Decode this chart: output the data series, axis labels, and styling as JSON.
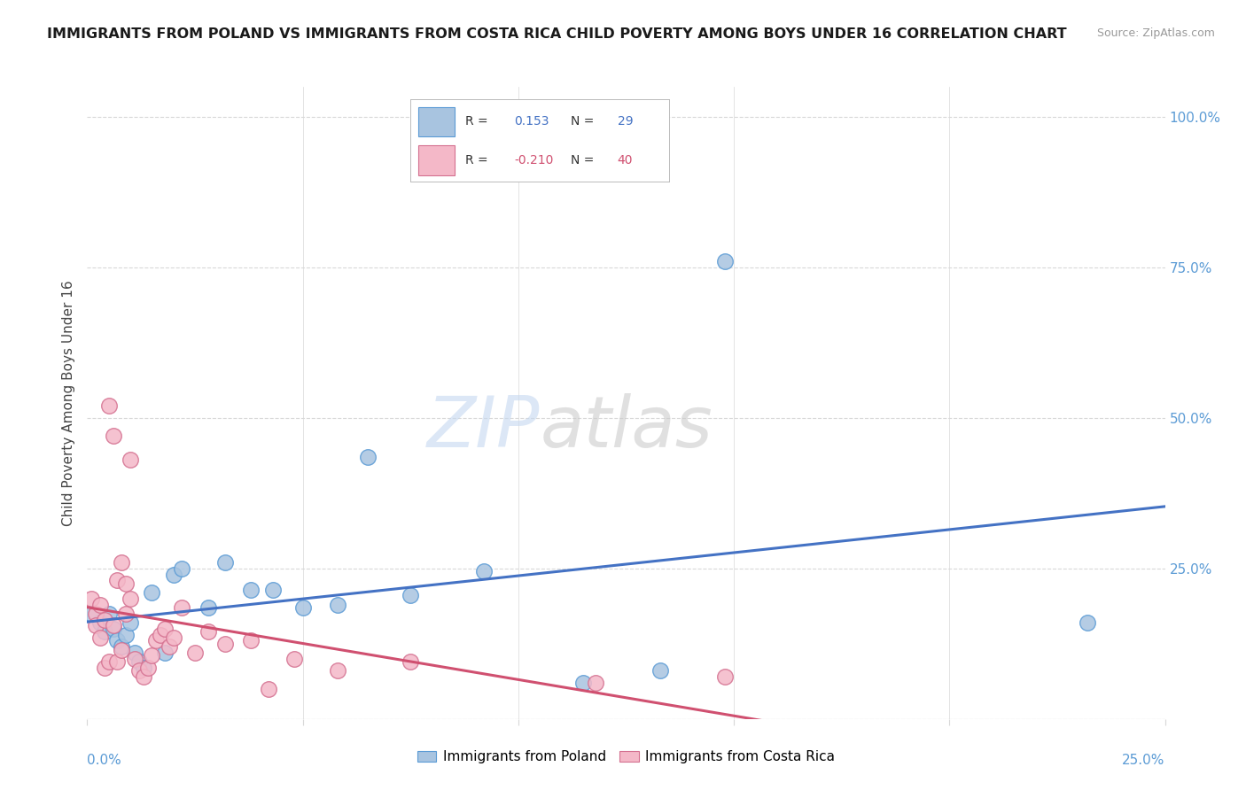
{
  "title": "IMMIGRANTS FROM POLAND VS IMMIGRANTS FROM COSTA RICA CHILD POVERTY AMONG BOYS UNDER 16 CORRELATION CHART",
  "source": "Source: ZipAtlas.com",
  "ylabel": "Child Poverty Among Boys Under 16",
  "xlim": [
    0.0,
    0.25
  ],
  "ylim": [
    0.0,
    1.05
  ],
  "poland_color": "#a8c4e0",
  "poland_edge_color": "#5b9bd5",
  "costa_rica_color": "#f4b8c8",
  "costa_rica_edge_color": "#d47090",
  "trend_poland_color": "#4472c4",
  "trend_costa_rica_color": "#d05070",
  "legend_R_poland": "0.153",
  "legend_N_poland": "29",
  "legend_R_costa_rica": "-0.210",
  "legend_N_costa_rica": "40",
  "poland_x": [
    0.001,
    0.003,
    0.004,
    0.005,
    0.006,
    0.007,
    0.008,
    0.009,
    0.01,
    0.011,
    0.012,
    0.013,
    0.015,
    0.018,
    0.02,
    0.022,
    0.028,
    0.032,
    0.038,
    0.043,
    0.05,
    0.058,
    0.065,
    0.075,
    0.092,
    0.115,
    0.133,
    0.148,
    0.232
  ],
  "poland_y": [
    0.175,
    0.16,
    0.145,
    0.175,
    0.15,
    0.13,
    0.12,
    0.14,
    0.16,
    0.11,
    0.095,
    0.085,
    0.21,
    0.11,
    0.24,
    0.25,
    0.185,
    0.26,
    0.215,
    0.215,
    0.185,
    0.19,
    0.435,
    0.205,
    0.245,
    0.06,
    0.08,
    0.76,
    0.16
  ],
  "costa_rica_x": [
    0.001,
    0.002,
    0.002,
    0.003,
    0.003,
    0.004,
    0.004,
    0.005,
    0.005,
    0.006,
    0.006,
    0.007,
    0.007,
    0.008,
    0.008,
    0.009,
    0.009,
    0.01,
    0.01,
    0.011,
    0.012,
    0.013,
    0.014,
    0.015,
    0.016,
    0.017,
    0.018,
    0.019,
    0.02,
    0.022,
    0.025,
    0.028,
    0.032,
    0.038,
    0.042,
    0.048,
    0.058,
    0.075,
    0.118,
    0.148
  ],
  "costa_rica_y": [
    0.2,
    0.175,
    0.155,
    0.135,
    0.19,
    0.165,
    0.085,
    0.095,
    0.52,
    0.47,
    0.155,
    0.095,
    0.23,
    0.26,
    0.115,
    0.175,
    0.225,
    0.43,
    0.2,
    0.1,
    0.08,
    0.07,
    0.085,
    0.105,
    0.13,
    0.14,
    0.15,
    0.12,
    0.135,
    0.185,
    0.11,
    0.145,
    0.125,
    0.13,
    0.05,
    0.1,
    0.08,
    0.095,
    0.06,
    0.07
  ],
  "grid_color": "#d8d8d8",
  "background_color": "#ffffff",
  "title_fontsize": 11.5,
  "axis_label_color": "#5b9bd5",
  "tick_label_color_right": "#5b9bd5",
  "right_yticks": [
    0.0,
    0.25,
    0.5,
    0.75,
    1.0
  ],
  "right_yticklabels": [
    "",
    "25.0%",
    "50.0%",
    "75.0%",
    "100.0%"
  ]
}
